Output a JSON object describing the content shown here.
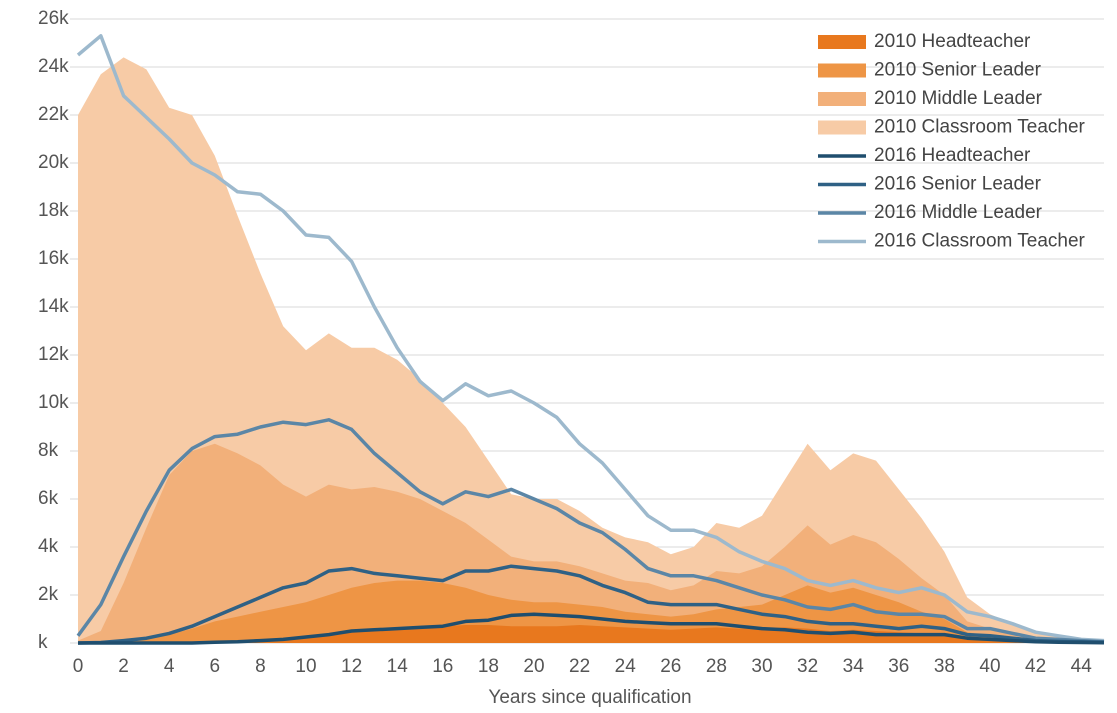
{
  "chart_data": {
    "type": "area-line",
    "x_label": "Years since qualification",
    "x": [
      0,
      1,
      2,
      3,
      4,
      5,
      6,
      7,
      8,
      9,
      10,
      11,
      12,
      13,
      14,
      15,
      16,
      17,
      18,
      19,
      20,
      21,
      22,
      23,
      24,
      25,
      26,
      27,
      28,
      29,
      30,
      31,
      32,
      33,
      34,
      35,
      36,
      37,
      38,
      39,
      40,
      41,
      42,
      43,
      44,
      45
    ],
    "xlim": [
      0,
      45
    ],
    "xticks": [
      0,
      2,
      4,
      6,
      8,
      10,
      12,
      14,
      16,
      18,
      20,
      22,
      24,
      26,
      28,
      30,
      32,
      34,
      36,
      38,
      40,
      42,
      44
    ],
    "ylim": [
      0,
      26
    ],
    "yticks": [
      {
        "value": 0,
        "label": "k"
      },
      {
        "value": 2,
        "label": "2k"
      },
      {
        "value": 4,
        "label": "4k"
      },
      {
        "value": 6,
        "label": "6k"
      },
      {
        "value": 8,
        "label": "8k"
      },
      {
        "value": 10,
        "label": "10k"
      },
      {
        "value": 12,
        "label": "12k"
      },
      {
        "value": 14,
        "label": "14k"
      },
      {
        "value": 16,
        "label": "16k"
      },
      {
        "value": 18,
        "label": "18k"
      },
      {
        "value": 20,
        "label": "20k"
      },
      {
        "value": 22,
        "label": "22k"
      },
      {
        "value": 24,
        "label": "24k"
      },
      {
        "value": 26,
        "label": "26k"
      }
    ],
    "grid": true,
    "legend": "upper right",
    "series": [
      {
        "name": "2010 Headteacher",
        "style": "area",
        "color": "#e8781e",
        "values": [
          0,
          0,
          0,
          0,
          0,
          0.02,
          0.05,
          0.08,
          0.12,
          0.18,
          0.25,
          0.35,
          0.45,
          0.55,
          0.6,
          0.65,
          0.7,
          0.75,
          0.75,
          0.7,
          0.7,
          0.7,
          0.75,
          0.7,
          0.65,
          0.6,
          0.55,
          0.6,
          0.65,
          0.6,
          0.6,
          0.65,
          0.6,
          0.5,
          0.55,
          0.5,
          0.45,
          0.4,
          0.35,
          0.2,
          0.15,
          0.1,
          0.05,
          0.03,
          0.02,
          0.01
        ]
      },
      {
        "name": "2010 Senior Leader",
        "style": "area",
        "color": "#ee9545",
        "values": [
          0,
          0.02,
          0.1,
          0.2,
          0.35,
          0.6,
          0.9,
          1.1,
          1.3,
          1.5,
          1.7,
          2.0,
          2.3,
          2.5,
          2.6,
          2.6,
          2.5,
          2.3,
          2.0,
          1.8,
          1.7,
          1.7,
          1.6,
          1.5,
          1.3,
          1.2,
          1.1,
          1.2,
          1.4,
          1.5,
          1.6,
          2.0,
          2.4,
          2.1,
          2.3,
          2.0,
          1.7,
          1.3,
          1.0,
          0.45,
          0.3,
          0.2,
          0.1,
          0.07,
          0.05,
          0.03
        ]
      },
      {
        "name": "2010 Middle Leader",
        "style": "area",
        "color": "#f2b07a",
        "values": [
          0.1,
          0.5,
          2.5,
          4.8,
          7.0,
          8.0,
          8.3,
          7.9,
          7.4,
          6.6,
          6.1,
          6.6,
          6.4,
          6.5,
          6.3,
          6.0,
          5.5,
          5.0,
          4.3,
          3.6,
          3.4,
          3.4,
          3.2,
          2.9,
          2.6,
          2.5,
          2.2,
          2.4,
          3.0,
          2.9,
          3.2,
          4.0,
          4.9,
          4.1,
          4.5,
          4.2,
          3.5,
          2.7,
          2.0,
          0.9,
          0.6,
          0.4,
          0.2,
          0.15,
          0.1,
          0.05
        ]
      },
      {
        "name": "2010 Classroom Teacher",
        "style": "area",
        "color": "#f7cba6",
        "values": [
          22.0,
          23.7,
          24.4,
          23.9,
          22.3,
          22.0,
          20.3,
          17.8,
          15.4,
          13.2,
          12.2,
          12.9,
          12.3,
          12.3,
          11.8,
          11.0,
          10.0,
          9.0,
          7.6,
          6.2,
          6.0,
          6.0,
          5.5,
          4.8,
          4.4,
          4.2,
          3.7,
          4.0,
          5.0,
          4.8,
          5.3,
          6.8,
          8.3,
          7.2,
          7.9,
          7.6,
          6.4,
          5.2,
          3.8,
          1.9,
          1.2,
          0.8,
          0.4,
          0.3,
          0.15,
          0.1
        ]
      },
      {
        "name": "2016 Headteacher",
        "style": "line",
        "color": "#1f4e6e",
        "values": [
          0,
          0,
          0,
          0,
          0,
          0,
          0.03,
          0.05,
          0.1,
          0.15,
          0.25,
          0.35,
          0.5,
          0.55,
          0.6,
          0.65,
          0.7,
          0.9,
          0.95,
          1.15,
          1.2,
          1.15,
          1.1,
          1.0,
          0.9,
          0.85,
          0.8,
          0.8,
          0.8,
          0.7,
          0.6,
          0.55,
          0.45,
          0.4,
          0.45,
          0.35,
          0.35,
          0.35,
          0.35,
          0.2,
          0.15,
          0.1,
          0.05,
          0.03,
          0.02,
          0.01
        ]
      },
      {
        "name": "2016 Senior Leader",
        "style": "line",
        "color": "#2f6185",
        "values": [
          0,
          0.02,
          0.1,
          0.2,
          0.4,
          0.7,
          1.1,
          1.5,
          1.9,
          2.3,
          2.5,
          3.0,
          3.1,
          2.9,
          2.8,
          2.7,
          2.6,
          3.0,
          3.0,
          3.2,
          3.1,
          3.0,
          2.8,
          2.4,
          2.1,
          1.7,
          1.6,
          1.6,
          1.6,
          1.4,
          1.2,
          1.1,
          0.9,
          0.8,
          0.8,
          0.7,
          0.6,
          0.7,
          0.6,
          0.35,
          0.3,
          0.2,
          0.1,
          0.07,
          0.05,
          0.03
        ]
      },
      {
        "name": "2016 Middle Leader",
        "style": "line",
        "color": "#5b86a6",
        "values": [
          0.3,
          1.6,
          3.6,
          5.5,
          7.2,
          8.1,
          8.6,
          8.7,
          9.0,
          9.2,
          9.1,
          9.3,
          8.9,
          7.9,
          7.1,
          6.3,
          5.8,
          6.3,
          6.1,
          6.4,
          6.0,
          5.6,
          5.0,
          4.6,
          3.9,
          3.1,
          2.8,
          2.8,
          2.6,
          2.3,
          2.0,
          1.8,
          1.5,
          1.4,
          1.6,
          1.3,
          1.2,
          1.2,
          1.1,
          0.6,
          0.6,
          0.4,
          0.2,
          0.15,
          0.1,
          0.05
        ]
      },
      {
        "name": "2016 Classroom Teacher",
        "style": "line",
        "color": "#9db9cd",
        "values": [
          24.5,
          25.3,
          22.8,
          21.9,
          21.0,
          20.0,
          19.5,
          18.8,
          18.7,
          18.0,
          17.0,
          16.9,
          15.9,
          14.0,
          12.3,
          10.9,
          10.1,
          10.8,
          10.3,
          10.5,
          10.0,
          9.4,
          8.3,
          7.5,
          6.4,
          5.3,
          4.7,
          4.7,
          4.4,
          3.8,
          3.4,
          3.1,
          2.6,
          2.4,
          2.6,
          2.3,
          2.1,
          2.3,
          2.0,
          1.3,
          1.1,
          0.8,
          0.45,
          0.3,
          0.15,
          0.1
        ]
      }
    ]
  }
}
